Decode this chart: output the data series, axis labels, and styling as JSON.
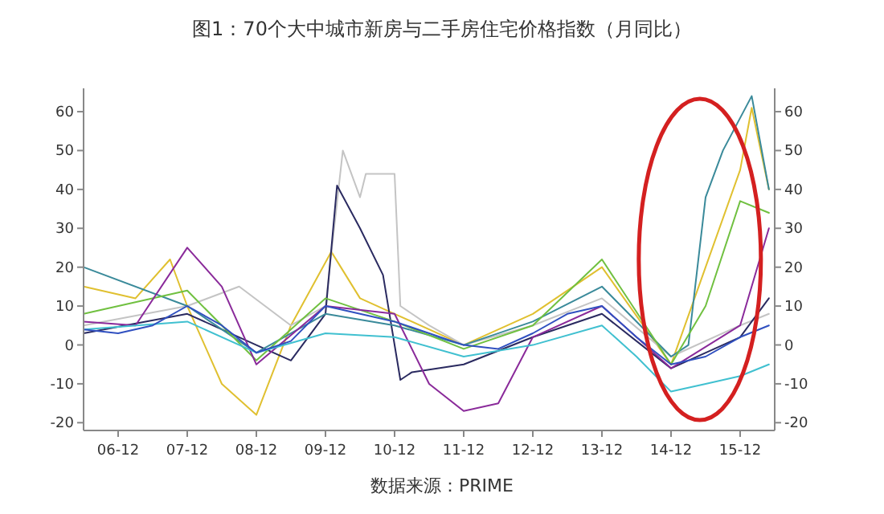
{
  "chart_data": {
    "type": "line",
    "title": "图1：70个大中城市新房与二手房住宅价格指数（月同比）",
    "annotations": [
      "数据来源：PRIME"
    ],
    "xlim": [
      "2006-06",
      "2016-06"
    ],
    "xticks": [
      {
        "value": "2006-12",
        "label": "06-12"
      },
      {
        "value": "2007-12",
        "label": "07-12"
      },
      {
        "value": "2008-12",
        "label": "08-12"
      },
      {
        "value": "2009-12",
        "label": "09-12"
      },
      {
        "value": "2010-12",
        "label": "10-12"
      },
      {
        "value": "2011-12",
        "label": "11-12"
      },
      {
        "value": "2012-12",
        "label": "12-12"
      },
      {
        "value": "2013-12",
        "label": "13-12"
      },
      {
        "value": "2014-12",
        "label": "14-12"
      },
      {
        "value": "2015-12",
        "label": "15-12"
      }
    ],
    "ylim": [
      -22,
      66
    ],
    "yticks": [
      -20,
      -10,
      0,
      10,
      20,
      30,
      40,
      50,
      60
    ],
    "y2lim": [
      -22,
      66
    ],
    "y2ticks": [
      -20,
      -10,
      0,
      10,
      20,
      30,
      40,
      50,
      60
    ],
    "grid": false,
    "line_style": "solid",
    "series": [
      {
        "color": "#e0c030",
        "x": [
          "2006-06",
          "2007-03",
          "2007-09",
          "2007-12",
          "2008-06",
          "2008-12",
          "2009-06",
          "2010-01",
          "2010-06",
          "2010-12",
          "2011-12",
          "2012-12",
          "2013-12",
          "2014-12",
          "2015-06",
          "2015-12",
          "2016-02",
          "2016-05"
        ],
        "values": [
          15,
          12,
          22,
          10,
          -10,
          -18,
          5,
          24,
          12,
          8,
          0,
          8,
          20,
          -5,
          20,
          45,
          61,
          40
        ]
      },
      {
        "color": "#c4c4c4",
        "x": [
          "2006-06",
          "2007-12",
          "2008-09",
          "2009-06",
          "2009-12",
          "2010-03",
          "2010-06",
          "2010-07",
          "2010-12",
          "2011-01",
          "2011-06",
          "2011-12",
          "2012-12",
          "2013-12",
          "2014-12",
          "2015-12",
          "2016-05"
        ],
        "values": [
          5,
          10,
          15,
          5,
          10,
          50,
          38,
          44,
          44,
          10,
          5,
          0,
          5,
          12,
          -3,
          5,
          8
        ]
      },
      {
        "color": "#2a2a60",
        "x": [
          "2006-06",
          "2007-12",
          "2008-12",
          "2009-06",
          "2009-12",
          "2010-02",
          "2010-06",
          "2010-10",
          "2011-01",
          "2011-03",
          "2011-12",
          "2012-12",
          "2013-12",
          "2014-12",
          "2015-12",
          "2016-05"
        ],
        "values": [
          3,
          8,
          0,
          -4,
          8,
          41,
          30,
          18,
          -9,
          -7,
          -5,
          2,
          8,
          -6,
          2,
          12
        ]
      },
      {
        "color": "#3a8a9a",
        "x": [
          "2006-06",
          "2007-12",
          "2008-12",
          "2009-12",
          "2010-12",
          "2011-12",
          "2012-12",
          "2013-12",
          "2014-12",
          "2015-03",
          "2015-06",
          "2015-09",
          "2016-02",
          "2016-05"
        ],
        "values": [
          20,
          10,
          -2,
          8,
          5,
          0,
          6,
          15,
          -3,
          0,
          38,
          50,
          64,
          40
        ]
      },
      {
        "color": "#70c040",
        "x": [
          "2006-06",
          "2007-12",
          "2008-12",
          "2009-12",
          "2010-12",
          "2011-12",
          "2012-12",
          "2013-12",
          "2014-12",
          "2015-06",
          "2015-12",
          "2016-05"
        ],
        "values": [
          8,
          14,
          -4,
          12,
          6,
          -1,
          5,
          22,
          -5,
          10,
          37,
          34
        ]
      },
      {
        "color": "#8a2a9a",
        "x": [
          "2006-06",
          "2007-03",
          "2007-12",
          "2008-06",
          "2008-12",
          "2009-12",
          "2010-12",
          "2011-06",
          "2011-12",
          "2012-06",
          "2012-12",
          "2013-12",
          "2014-12",
          "2015-12",
          "2016-05"
        ],
        "values": [
          6,
          5,
          25,
          15,
          -5,
          10,
          8,
          -10,
          -17,
          -15,
          2,
          10,
          -6,
          5,
          30
        ]
      },
      {
        "color": "#40c0d0",
        "x": [
          "2006-06",
          "2007-12",
          "2008-12",
          "2009-12",
          "2010-12",
          "2011-12",
          "2012-12",
          "2013-12",
          "2014-06",
          "2014-12",
          "2015-06",
          "2015-12",
          "2016-05"
        ],
        "values": [
          4,
          6,
          -2,
          3,
          2,
          -3,
          0,
          5,
          -3,
          -12,
          -10,
          -8,
          -5
        ]
      },
      {
        "color": "#3050c0",
        "x": [
          "2006-06",
          "2006-12",
          "2007-06",
          "2007-12",
          "2008-06",
          "2008-12",
          "2009-06",
          "2009-12",
          "2010-06",
          "2010-12",
          "2011-06",
          "2011-12",
          "2012-06",
          "2012-12",
          "2013-06",
          "2013-12",
          "2014-06",
          "2014-12",
          "2015-06",
          "2015-12",
          "2016-05"
        ],
        "values": [
          4,
          3,
          5,
          10,
          5,
          -2,
          1,
          10,
          8,
          6,
          3,
          0,
          -1,
          3,
          8,
          10,
          2,
          -5,
          -3,
          2,
          5
        ]
      }
    ]
  }
}
